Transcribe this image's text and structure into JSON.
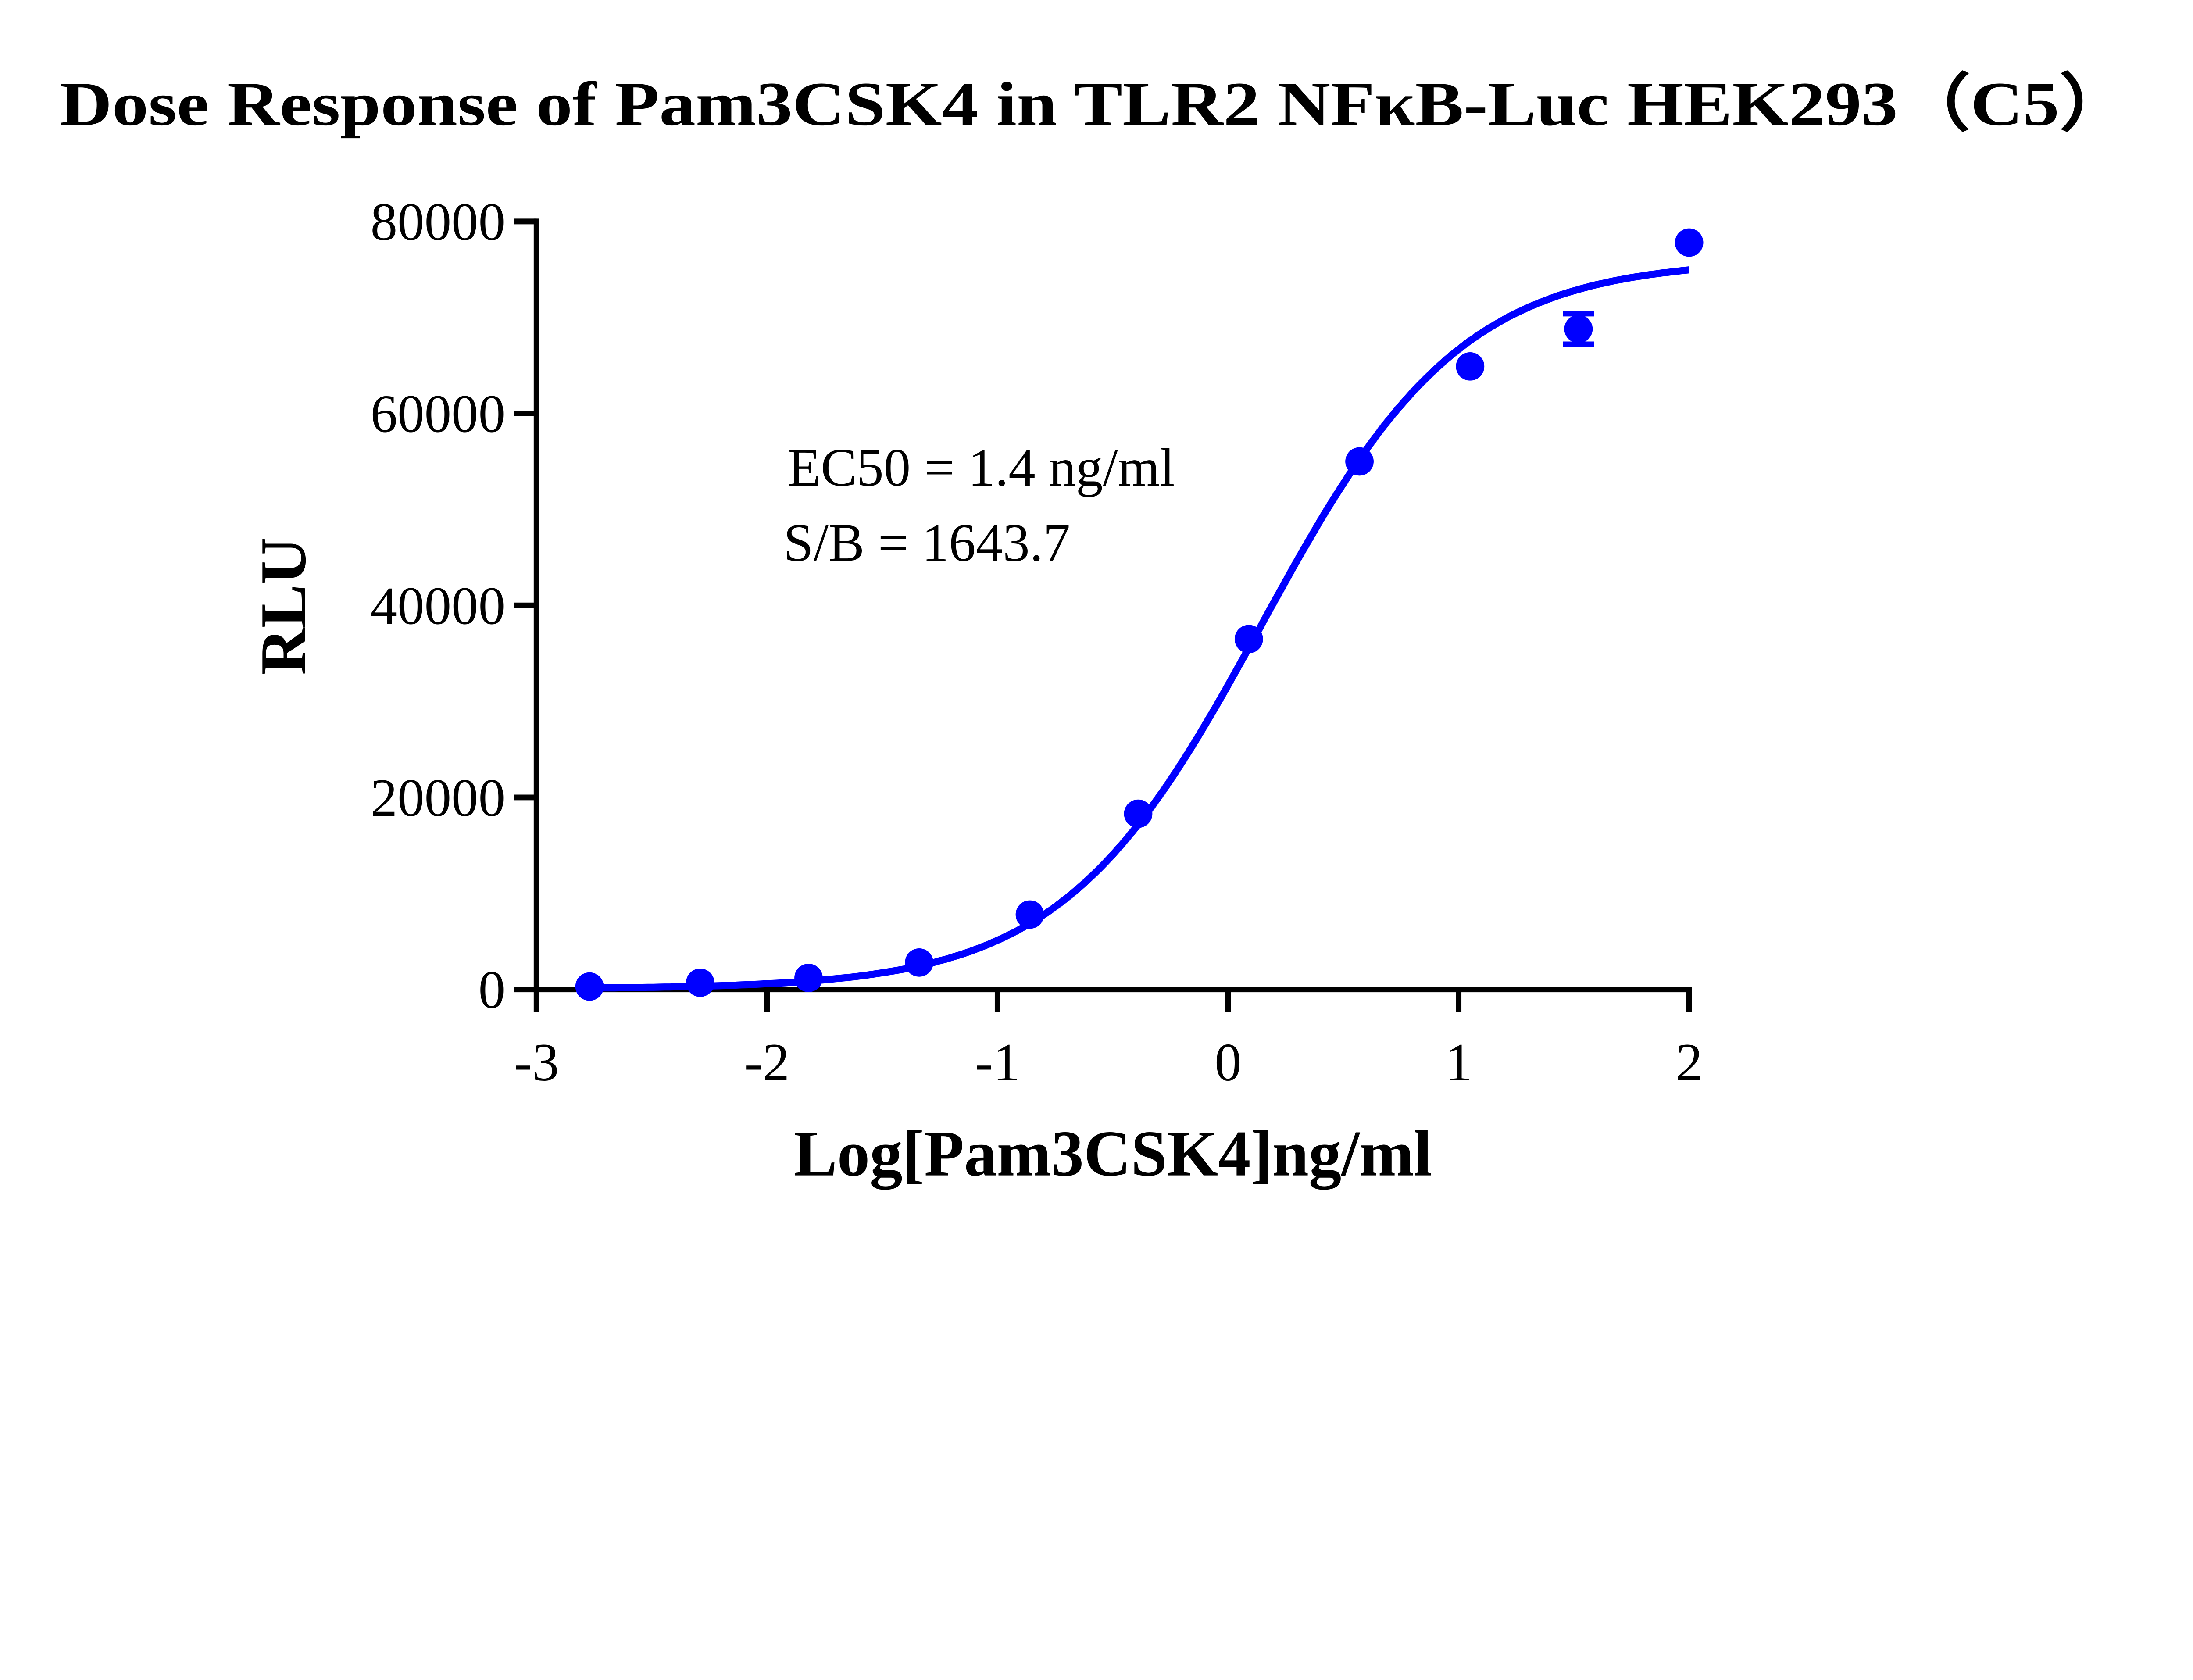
{
  "chart_data": {
    "type": "scatter",
    "title": "Dose Response of Pam3CSK4 in TLR2 NFκB-Luc HEK293（C5）",
    "xlabel": "Log[Pam3CSK4]ng/ml",
    "ylabel": "RLU",
    "xlim": [
      -3,
      2
    ],
    "ylim": [
      0,
      80000
    ],
    "x_ticks": [
      "-3",
      "-2",
      "-1",
      "0",
      "1",
      "2"
    ],
    "y_ticks": [
      "0",
      "20000",
      "40000",
      "60000",
      "80000"
    ],
    "grid": false,
    "color": "#0000ff",
    "points": [
      {
        "x": -2.77,
        "y": 300,
        "err": 0
      },
      {
        "x": -2.29,
        "y": 700,
        "err": 0
      },
      {
        "x": -1.82,
        "y": 1200,
        "err": 0
      },
      {
        "x": -1.34,
        "y": 2800,
        "err": 0
      },
      {
        "x": -0.86,
        "y": 7800,
        "err": 0
      },
      {
        "x": -0.39,
        "y": 18300,
        "err": 0
      },
      {
        "x": 0.09,
        "y": 36500,
        "err": 0
      },
      {
        "x": 0.57,
        "y": 55000,
        "err": 0
      },
      {
        "x": 1.05,
        "y": 64900,
        "err": 0
      },
      {
        "x": 1.52,
        "y": 68800,
        "err": 1600
      },
      {
        "x": 2.0,
        "y": 77800,
        "err": 0
      }
    ],
    "fit": {
      "model": "4PL",
      "bottom": 50,
      "top": 76000,
      "log_ec50": 0.146,
      "hill": 1.0
    },
    "annotations": [
      "EC50 = 1.4 ng/ml",
      "S/B = 1643.7"
    ]
  }
}
